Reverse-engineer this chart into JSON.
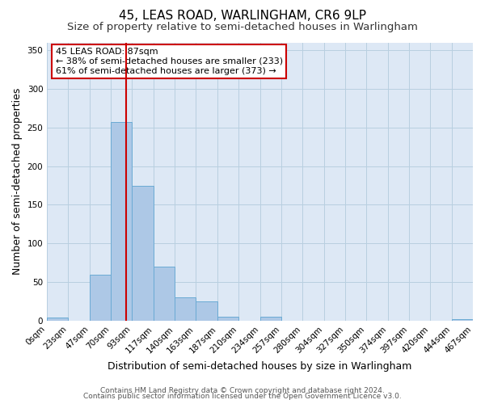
{
  "title": "45, LEAS ROAD, WARLINGHAM, CR6 9LP",
  "subtitle": "Size of property relative to semi-detached houses in Warlingham",
  "xlabel": "Distribution of semi-detached houses by size in Warlingham",
  "ylabel": "Number of semi-detached properties",
  "footnote1": "Contains HM Land Registry data © Crown copyright and database right 2024.",
  "footnote2": "Contains public sector information licensed under the Open Government Licence v3.0.",
  "bin_edges": [
    0,
    23,
    47,
    70,
    93,
    117,
    140,
    163,
    187,
    210,
    234,
    257,
    280,
    304,
    327,
    350,
    374,
    397,
    420,
    444,
    467
  ],
  "bin_counts": [
    4,
    0,
    60,
    257,
    175,
    70,
    30,
    25,
    5,
    0,
    5,
    0,
    0,
    0,
    0,
    0,
    0,
    0,
    0,
    2
  ],
  "bar_color": "#adc8e6",
  "bar_edge_color": "#6aaad4",
  "property_size": 87,
  "vline_color": "#cc0000",
  "annotation_title": "45 LEAS ROAD: 87sqm",
  "annotation_line1": "← 38% of semi-detached houses are smaller (233)",
  "annotation_line2": "61% of semi-detached houses are larger (373) →",
  "annotation_box_color": "#cc0000",
  "ylim": [
    0,
    360
  ],
  "yticks": [
    0,
    50,
    100,
    150,
    200,
    250,
    300,
    350
  ],
  "plot_background": "#dde8f5",
  "figure_background": "#ffffff",
  "grid_color": "#b8cfe0",
  "title_fontsize": 11,
  "subtitle_fontsize": 9.5,
  "tick_label_size": 7.5,
  "axis_label_size": 9,
  "footnote_fontsize": 6.5
}
